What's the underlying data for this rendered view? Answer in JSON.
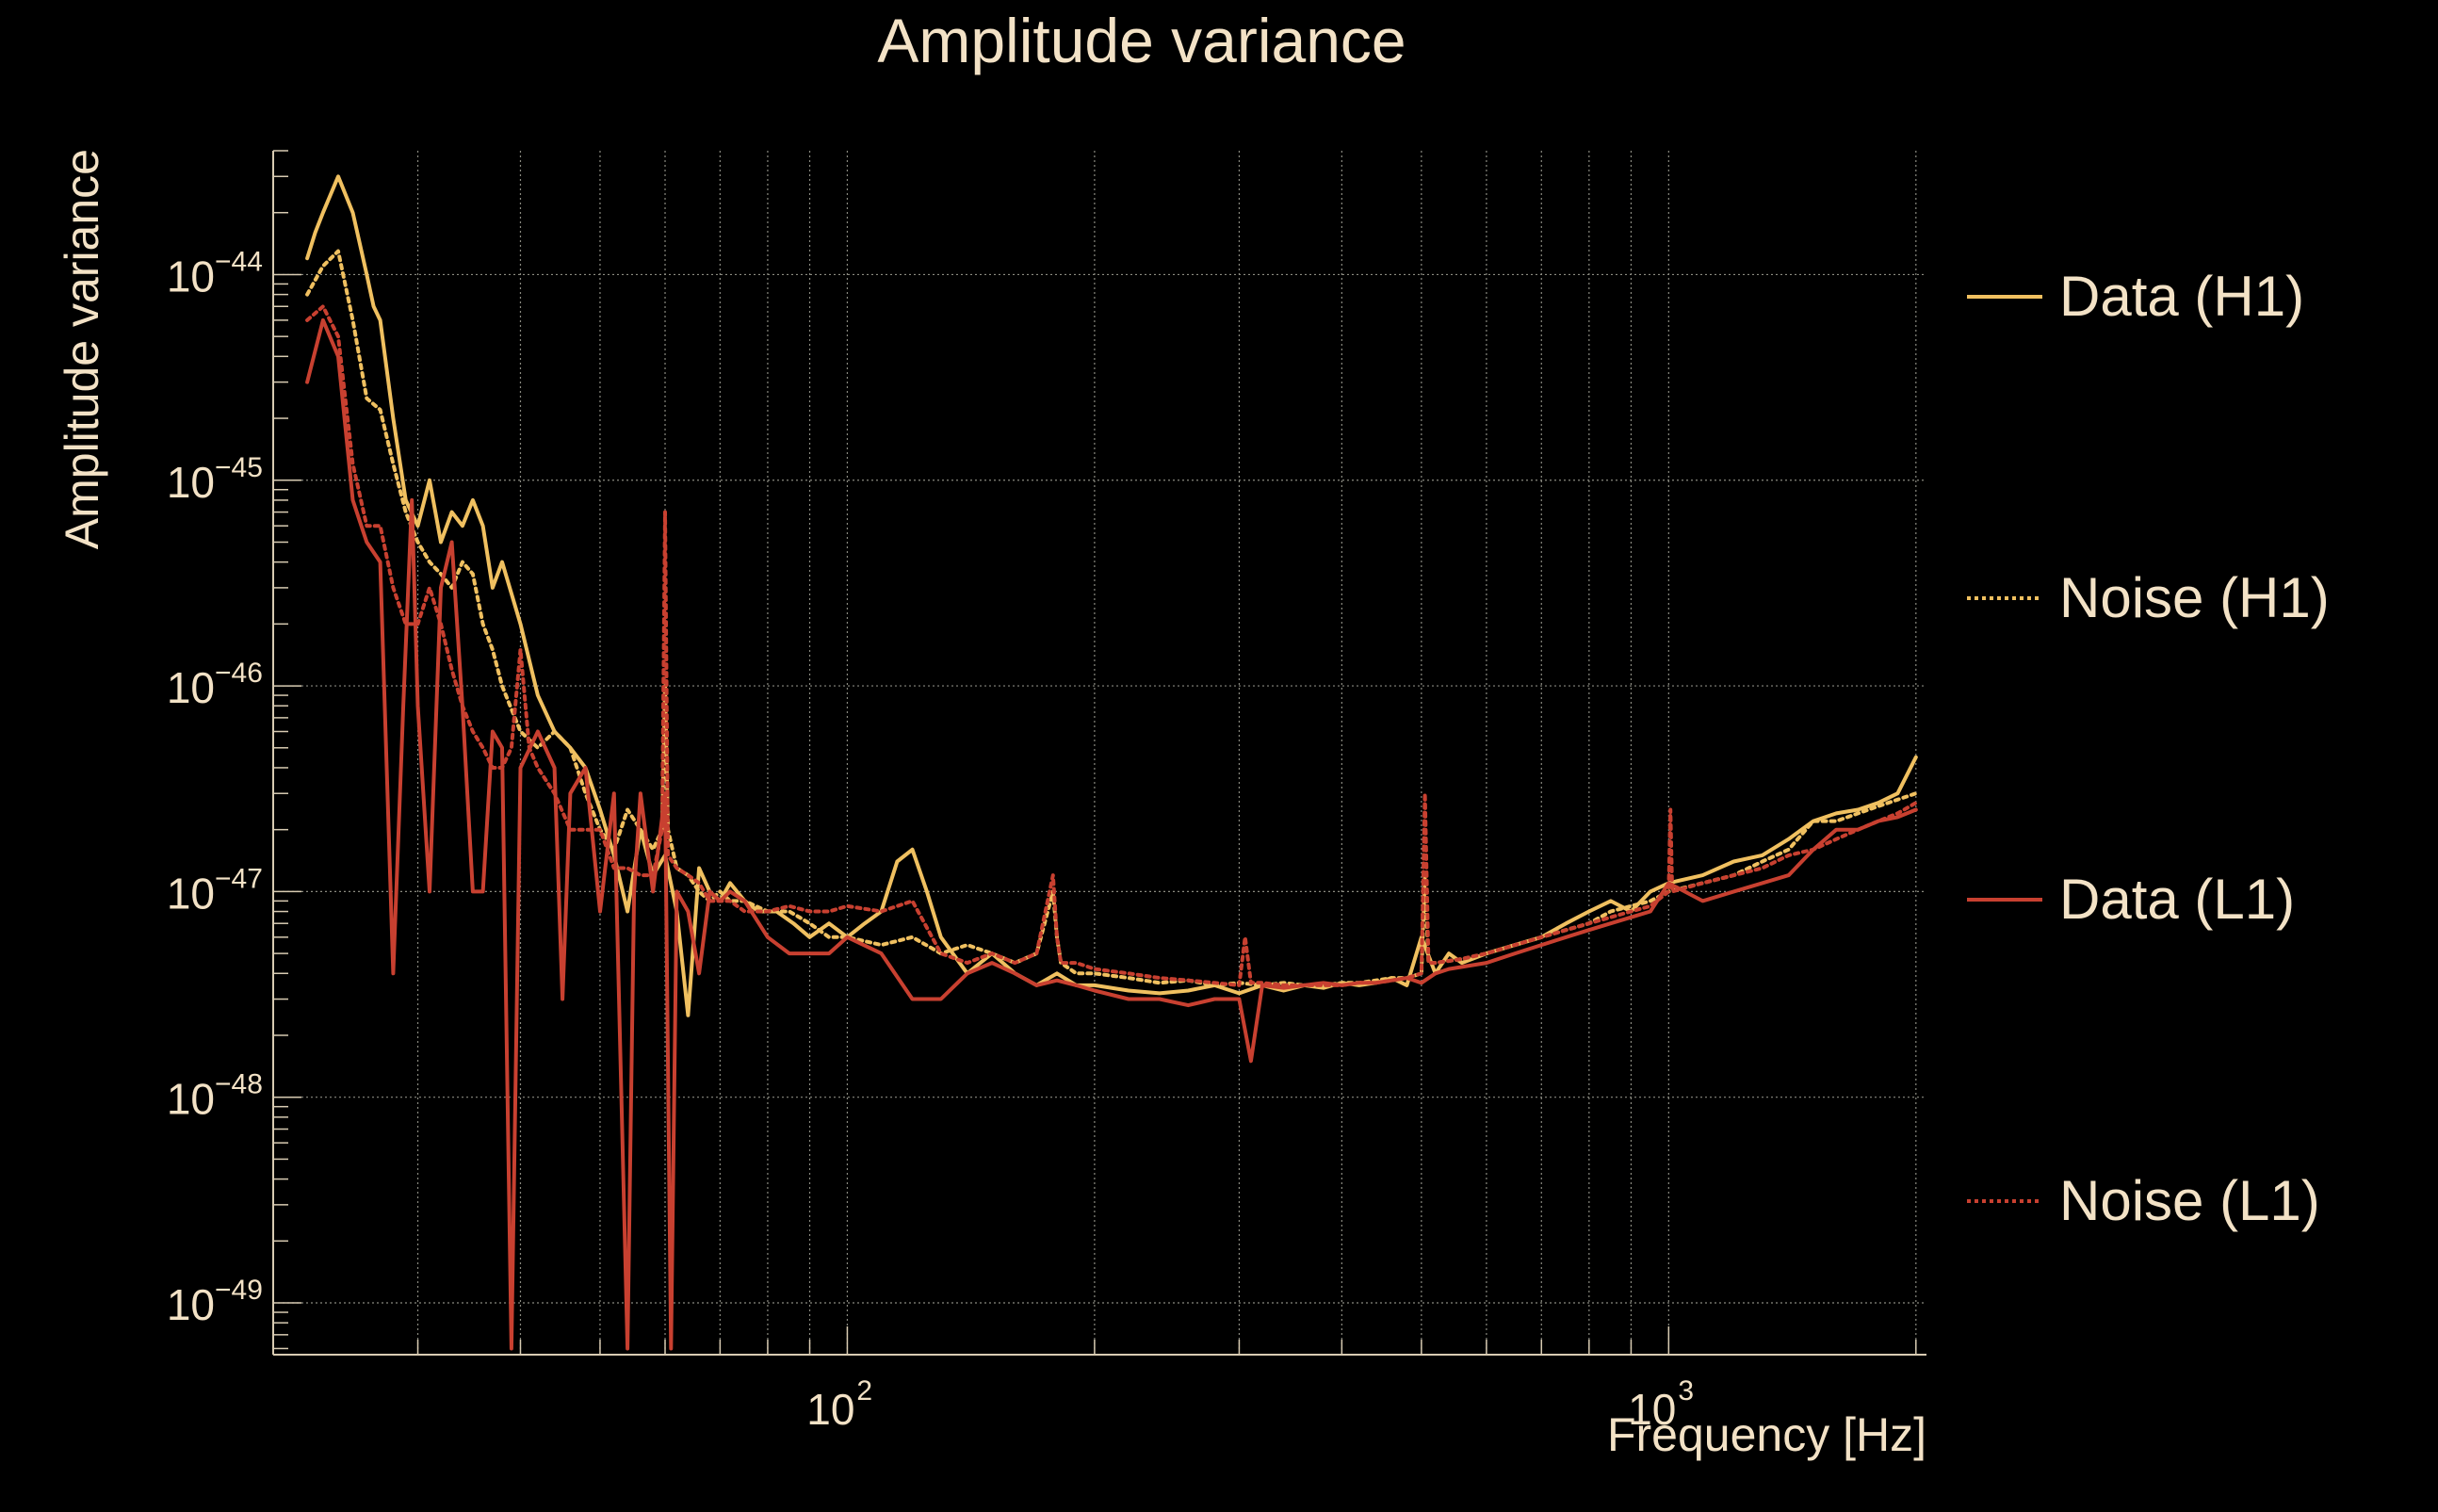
{
  "chart_data": {
    "type": "line",
    "title": "Amplitude variance",
    "xlabel": "Frequency [Hz]",
    "ylabel": "Amplitude variance",
    "x_scale": "log",
    "y_scale": "log",
    "xlim": [
      20,
      2060
    ],
    "ylim": [
      5.6e-50,
      4e-44
    ],
    "x_major_ticks": [
      {
        "value": 100,
        "base": "10",
        "exp": "2"
      },
      {
        "value": 1000,
        "base": "10",
        "exp": "3"
      }
    ],
    "y_major_ticks": [
      {
        "value": 1e-44,
        "base": "10",
        "exp": "−44"
      },
      {
        "value": 1e-45,
        "base": "10",
        "exp": "−45"
      },
      {
        "value": 1e-46,
        "base": "10",
        "exp": "−46"
      },
      {
        "value": 1e-47,
        "base": "10",
        "exp": "−47"
      },
      {
        "value": 1e-48,
        "base": "10",
        "exp": "−48"
      },
      {
        "value": 1e-49,
        "base": "10",
        "exp": "−49"
      }
    ],
    "grid": true,
    "legend_position": "right",
    "series": [
      {
        "name": "Data (H1)",
        "color": "#f0c060",
        "dash": "solid",
        "x": [
          22,
          22.5,
          23,
          24,
          25,
          26,
          26.5,
          27,
          28,
          29,
          30,
          31,
          32,
          33,
          34,
          35,
          36,
          37,
          38,
          40,
          42,
          44,
          46,
          48,
          50,
          52,
          54,
          56,
          58,
          60,
          62,
          64,
          66,
          68,
          70,
          72,
          75,
          78,
          82,
          86,
          90,
          95,
          100,
          105,
          110,
          115,
          120,
          125,
          130,
          140,
          150,
          160,
          170,
          180,
          190,
          200,
          220,
          240,
          260,
          280,
          300,
          320,
          340,
          360,
          380,
          400,
          420,
          440,
          460,
          480,
          500,
          520,
          540,
          560,
          600,
          650,
          700,
          750,
          800,
          850,
          900,
          950,
          1000,
          1100,
          1200,
          1300,
          1400,
          1500,
          1600,
          1700,
          1800,
          1900,
          2000
        ],
        "values": [
          1.2e-44,
          1.6e-44,
          2e-44,
          3e-44,
          2e-44,
          1e-44,
          7e-45,
          6e-45,
          2e-45,
          8e-46,
          6e-46,
          1e-45,
          5e-46,
          7e-46,
          6e-46,
          8e-46,
          6e-46,
          3e-46,
          4e-46,
          2e-46,
          9e-47,
          6e-47,
          5e-47,
          4e-47,
          2.5e-47,
          1.5e-47,
          8e-48,
          2e-47,
          1.2e-47,
          1.5e-47,
          8e-48,
          2.5e-48,
          1.3e-47,
          1e-47,
          9e-48,
          1.1e-47,
          9e-48,
          8e-48,
          8e-48,
          7e-48,
          6e-48,
          7e-48,
          6e-48,
          7e-48,
          8e-48,
          1.4e-47,
          1.6e-47,
          1e-47,
          6e-48,
          4e-48,
          5e-48,
          4e-48,
          3.5e-48,
          4e-48,
          3.5e-48,
          3.5e-48,
          3.3e-48,
          3.2e-48,
          3.3e-48,
          3.5e-48,
          3.2e-48,
          3.5e-48,
          3.3e-48,
          3.5e-48,
          3.4e-48,
          3.6e-48,
          3.5e-48,
          3.6e-48,
          3.8e-48,
          3.5e-48,
          6e-48,
          4e-48,
          5e-48,
          4.5e-48,
          5e-48,
          5.5e-48,
          6e-48,
          7e-48,
          8e-48,
          9e-48,
          8e-48,
          1e-47,
          1.1e-47,
          1.2e-47,
          1.4e-47,
          1.5e-47,
          1.8e-47,
          2.2e-47,
          2.4e-47,
          2.5e-47,
          2.7e-47,
          3e-47,
          4.5e-47
        ]
      },
      {
        "name": "Noise (H1)",
        "color": "#f0c060",
        "dash": "dotted",
        "x": [
          22,
          23,
          24,
          25,
          26,
          27,
          28,
          29,
          30,
          31,
          32,
          33,
          34,
          35,
          36,
          37,
          38,
          40,
          42,
          44,
          46,
          48,
          50,
          52,
          54,
          56,
          58,
          59.5,
          60,
          60.5,
          62,
          64,
          66,
          68,
          70,
          72,
          75,
          80,
          85,
          90,
          95,
          100,
          110,
          120,
          130,
          140,
          150,
          160,
          170,
          178,
          180,
          182,
          190,
          200,
          220,
          240,
          260,
          280,
          300,
          320,
          340,
          360,
          380,
          400,
          420,
          440,
          460,
          480,
          500,
          505,
          510,
          520,
          540,
          560,
          600,
          650,
          700,
          750,
          800,
          850,
          900,
          950,
          1000,
          1100,
          1200,
          1300,
          1400,
          1500,
          1600,
          1700,
          1800,
          1900,
          2000
        ],
        "values": [
          8e-45,
          1.1e-44,
          1.3e-44,
          6e-45,
          2.5e-45,
          2.2e-45,
          1.2e-45,
          7e-46,
          5e-46,
          4e-46,
          3.5e-46,
          3e-46,
          4e-46,
          3.5e-46,
          2e-46,
          1.5e-46,
          1e-46,
          6e-47,
          5e-47,
          6e-47,
          5e-47,
          3e-47,
          2e-47,
          1.6e-47,
          2.5e-47,
          2e-47,
          1.6e-47,
          2e-47,
          1e-46,
          2e-47,
          1.3e-47,
          1.2e-47,
          1e-47,
          9e-48,
          1e-47,
          9e-48,
          9e-48,
          8e-48,
          8e-48,
          7e-48,
          6e-48,
          6e-48,
          5.5e-48,
          6e-48,
          5e-48,
          5.5e-48,
          5e-48,
          4.5e-48,
          5e-48,
          1e-47,
          6e-48,
          4.5e-48,
          4e-48,
          4e-48,
          3.8e-48,
          3.6e-48,
          3.7e-48,
          3.5e-48,
          3.6e-48,
          3.5e-48,
          3.6e-48,
          3.5e-48,
          3.5e-48,
          3.6e-48,
          3.6e-48,
          3.7e-48,
          3.8e-48,
          3.8e-48,
          4e-48,
          1.2e-47,
          4.5e-48,
          4.5e-48,
          4.6e-48,
          4.7e-48,
          5e-48,
          5.5e-48,
          6e-48,
          6.5e-48,
          7e-48,
          8e-48,
          8.5e-48,
          9e-48,
          1e-47,
          1.1e-47,
          1.2e-47,
          1.4e-47,
          1.6e-47,
          2.2e-47,
          2.2e-47,
          2.4e-47,
          2.6e-47,
          2.8e-47,
          3e-47
        ]
      },
      {
        "name": "Data (L1)",
        "color": "#c84030",
        "dash": "solid",
        "x": [
          22,
          23,
          24,
          25,
          26,
          27,
          28,
          28.8,
          29.5,
          30,
          31,
          32,
          33,
          34,
          35,
          36,
          37,
          38,
          39,
          40,
          42,
          44,
          45,
          46,
          48,
          50,
          52,
          54,
          55,
          56,
          58,
          60,
          61,
          62,
          64,
          66,
          68,
          70,
          72,
          75,
          80,
          85,
          90,
          95,
          100,
          110,
          120,
          130,
          140,
          150,
          160,
          170,
          180,
          190,
          200,
          220,
          240,
          260,
          280,
          300,
          310,
          320,
          340,
          360,
          380,
          400,
          420,
          440,
          460,
          480,
          500,
          520,
          540,
          560,
          600,
          650,
          700,
          750,
          800,
          850,
          900,
          950,
          1000,
          1100,
          1200,
          1300,
          1400,
          1500,
          1600,
          1700,
          1800,
          1900,
          2000
        ],
        "values": [
          3e-45,
          6e-45,
          4e-45,
          8e-46,
          5e-46,
          4e-46,
          4e-48,
          8e-47,
          8e-46,
          8e-47,
          1e-47,
          3e-46,
          5e-46,
          8e-47,
          1e-47,
          1e-47,
          6e-47,
          5e-47,
          6e-50,
          4e-47,
          6e-47,
          4e-47,
          3e-48,
          3e-47,
          4e-47,
          8e-48,
          3e-47,
          6e-50,
          1e-47,
          3e-47,
          1e-47,
          3e-47,
          6e-50,
          1e-47,
          8e-48,
          4e-48,
          1e-47,
          9e-48,
          1e-47,
          9e-48,
          6e-48,
          5e-48,
          5e-48,
          5e-48,
          6e-48,
          5e-48,
          3e-48,
          3e-48,
          4e-48,
          4.5e-48,
          4e-48,
          3.5e-48,
          3.7e-48,
          3.5e-48,
          3.3e-48,
          3e-48,
          3e-48,
          2.8e-48,
          3e-48,
          3e-48,
          1.5e-48,
          3.5e-48,
          3.4e-48,
          3.5e-48,
          3.6e-48,
          3.5e-48,
          3.6e-48,
          3.6e-48,
          3.7e-48,
          3.8e-48,
          3.6e-48,
          4e-48,
          4.2e-48,
          4.3e-48,
          4.5e-48,
          5e-48,
          5.5e-48,
          6e-48,
          6.5e-48,
          7e-48,
          7.5e-48,
          8e-48,
          1.1e-47,
          9e-48,
          1e-47,
          1.1e-47,
          1.2e-47,
          1.6e-47,
          2e-47,
          2e-47,
          2.2e-47,
          2.3e-47,
          2.5e-47
        ]
      },
      {
        "name": "Noise (L1)",
        "color": "#c84030",
        "dash": "dotted",
        "x": [
          22,
          23,
          24,
          25,
          26,
          27,
          28,
          29,
          30,
          31,
          32,
          33,
          34,
          35,
          36,
          37,
          38,
          39,
          40,
          41,
          42,
          44,
          46,
          48,
          50,
          52,
          54,
          56,
          58,
          59.5,
          60,
          60.5,
          62,
          64,
          66,
          68,
          70,
          72,
          75,
          80,
          85,
          90,
          95,
          100,
          110,
          120,
          130,
          140,
          150,
          160,
          170,
          178,
          180,
          182,
          190,
          200,
          220,
          240,
          260,
          280,
          300,
          305,
          310,
          320,
          340,
          360,
          380,
          400,
          420,
          440,
          460,
          480,
          500,
          505,
          510,
          520,
          540,
          560,
          600,
          650,
          700,
          750,
          800,
          850,
          900,
          950,
          1000,
          1005,
          1010,
          1100,
          1200,
          1300,
          1400,
          1500,
          1600,
          1700,
          1800,
          1900,
          2000
        ],
        "values": [
          6e-45,
          7e-45,
          5e-45,
          1.2e-45,
          6e-46,
          6e-46,
          3e-46,
          2e-46,
          2e-46,
          3e-46,
          2e-46,
          1.2e-46,
          8e-47,
          6e-47,
          5e-47,
          4e-47,
          4e-47,
          5e-47,
          1.5e-46,
          5e-47,
          4e-47,
          3e-47,
          2e-47,
          2e-47,
          2e-47,
          1.3e-47,
          1.3e-47,
          1.2e-47,
          1.2e-47,
          2e-47,
          7e-46,
          1.5e-47,
          1.3e-47,
          1.2e-47,
          1.1e-47,
          9e-48,
          9e-48,
          9e-48,
          8e-48,
          8e-48,
          8.5e-48,
          8e-48,
          8e-48,
          8.5e-48,
          8e-48,
          9e-48,
          5e-48,
          4.5e-48,
          5e-48,
          4.5e-48,
          5e-48,
          1.2e-47,
          6e-48,
          4.5e-48,
          4.5e-48,
          4.2e-48,
          4e-48,
          3.8e-48,
          3.7e-48,
          3.6e-48,
          3.5e-48,
          6e-48,
          3.6e-48,
          3.6e-48,
          3.5e-48,
          3.5e-48,
          3.5e-48,
          3.5e-48,
          3.6e-48,
          3.6e-48,
          3.7e-48,
          3.8e-48,
          4e-48,
          3e-47,
          4.5e-48,
          4.5e-48,
          4.6e-48,
          4.7e-48,
          5e-48,
          5.5e-48,
          6e-48,
          6.5e-48,
          7e-48,
          7.5e-48,
          8e-48,
          8.5e-48,
          1e-47,
          2.5e-47,
          1e-47,
          1.1e-47,
          1.2e-47,
          1.3e-47,
          1.5e-47,
          1.6e-47,
          1.8e-47,
          2e-47,
          2.2e-47,
          2.4e-47,
          2.7e-47
        ]
      }
    ]
  }
}
